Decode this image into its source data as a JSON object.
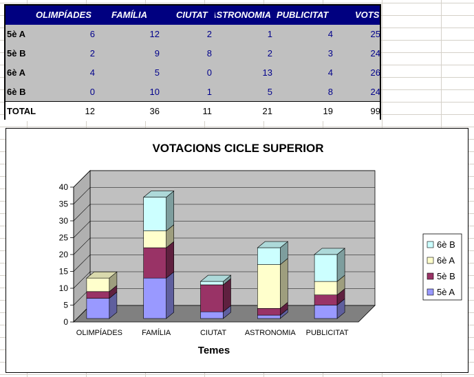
{
  "table": {
    "headers": [
      "OLIMPÍADES",
      "FAMÍLIA",
      "CIUTAT",
      "ASTRONOMIA",
      "PUBLICITAT",
      "VOTS"
    ],
    "rows": [
      {
        "label": "5è A",
        "values": [
          "6",
          "12",
          "2",
          "1",
          "4",
          "25"
        ]
      },
      {
        "label": "5è B",
        "values": [
          "2",
          "9",
          "8",
          "2",
          "3",
          "24"
        ]
      },
      {
        "label": "6è A",
        "values": [
          "4",
          "5",
          "0",
          "13",
          "4",
          "26"
        ]
      },
      {
        "label": "6è B",
        "values": [
          "0",
          "10",
          "1",
          "5",
          "8",
          "24"
        ]
      }
    ],
    "total": {
      "label": "TOTAL",
      "values": [
        "12",
        "36",
        "11",
        "21",
        "19",
        "99"
      ]
    }
  },
  "chart_data": {
    "type": "bar",
    "stacked": true,
    "three_d": true,
    "title": "VOTACIONS CICLE SUPERIOR",
    "xlabel": "Temes",
    "ylabel": "",
    "ylim": [
      0,
      40
    ],
    "yticks": [
      "0",
      "5",
      "10",
      "15",
      "20",
      "25",
      "30",
      "35",
      "40"
    ],
    "categories": [
      "OLIMPÍADES",
      "FAMÍLIA",
      "CIUTAT",
      "ASTRONOMIA",
      "PUBLICITAT"
    ],
    "series": [
      {
        "name": "5è A",
        "values": [
          6,
          12,
          2,
          1,
          4
        ],
        "color": "#9999ff"
      },
      {
        "name": "5è B",
        "values": [
          2,
          9,
          8,
          2,
          3
        ],
        "color": "#993366"
      },
      {
        "name": "6è A",
        "values": [
          4,
          5,
          0,
          13,
          4
        ],
        "color": "#ffffcc"
      },
      {
        "name": "6è B",
        "values": [
          0,
          10,
          1,
          5,
          8
        ],
        "color": "#ccffff"
      }
    ],
    "legend": "right",
    "legend_order": [
      "6è B",
      "6è A",
      "5è B",
      "5è A"
    ],
    "grid": true
  }
}
